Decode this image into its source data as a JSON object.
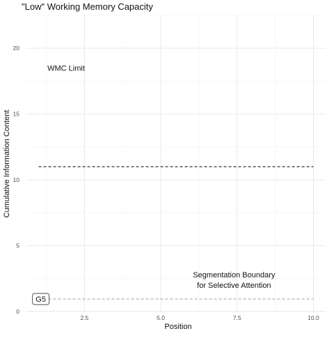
{
  "chart_data": {
    "type": "line",
    "title": "\"Low\" Working Memory Capacity",
    "xlabel": "Position",
    "ylabel": "Cumulative Information Content",
    "xlim": [
      0.6,
      10.4
    ],
    "ylim": [
      0,
      22.5
    ],
    "x_ticks": [
      2.5,
      5.0,
      7.5,
      10.0
    ],
    "x_tick_labels": [
      "2.5",
      "5.0",
      "7.5",
      "10.0"
    ],
    "y_ticks": [
      0,
      5,
      10,
      15,
      20
    ],
    "y_tick_labels": [
      "0",
      "5",
      "10",
      "15",
      "20"
    ],
    "grid": true,
    "series": [
      {
        "x": [
          1,
          10
        ],
        "values": [
          11,
          11
        ],
        "color": "#333333",
        "linestyle": "dashed"
      },
      {
        "x": [
          1,
          10
        ],
        "values": [
          0.95,
          0.95
        ],
        "color": "#a8a8a8",
        "linestyle": "dashed"
      }
    ],
    "annotations": [
      {
        "text": "WMC Limit",
        "x": 1.9,
        "y": 18.5
      },
      {
        "text": "Segmentation Boundary",
        "x": 7.4,
        "y": 2.8
      },
      {
        "text": "for Selective Attention",
        "x": 7.4,
        "y": 2.0
      }
    ],
    "label_box": {
      "text": "G5",
      "x": 0.82,
      "y": 0.95
    }
  }
}
